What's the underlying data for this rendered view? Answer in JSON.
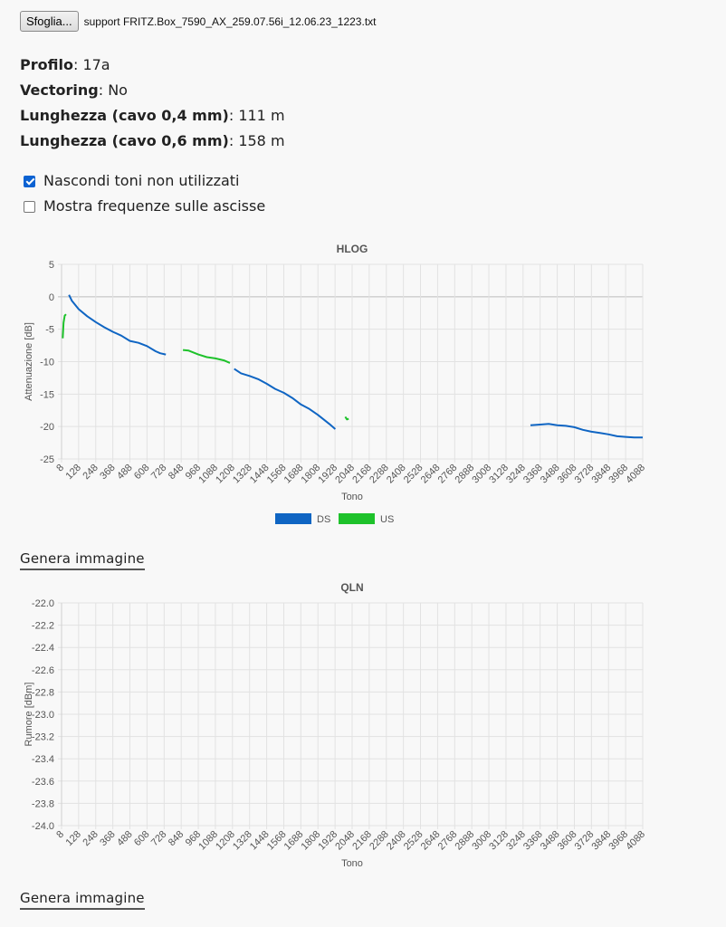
{
  "file": {
    "button_label": "Sfoglia...",
    "file_name": "support FRITZ.Box_7590_AX_259.07.56i_12.06.23_1223.txt"
  },
  "info": [
    {
      "label": "Profilo",
      "value": "17a"
    },
    {
      "label": "Vectoring",
      "value": "No"
    },
    {
      "label": "Lunghezza (cavo 0,4 mm)",
      "value": "111 m"
    },
    {
      "label": "Lunghezza (cavo 0,6 mm)",
      "value": "158 m"
    }
  ],
  "options": [
    {
      "label": "Nascondi toni non utilizzati",
      "checked": true
    },
    {
      "label": "Mostra frequenze sulle ascisse",
      "checked": false
    }
  ],
  "generate_label": "Genera immagine",
  "colors": {
    "ds": "#0f65c3",
    "us": "#1ec22b"
  },
  "chart_data": [
    {
      "type": "line",
      "title": "HLOG",
      "xlabel": "Tono",
      "ylabel": "Attenuazione [dB]",
      "xlim": [
        8,
        4088
      ],
      "ylim": [
        -25,
        5
      ],
      "xticks": [
        "8",
        "128",
        "248",
        "368",
        "488",
        "608",
        "728",
        "848",
        "968",
        "1088",
        "1208",
        "1328",
        "1448",
        "1568",
        "1688",
        "1808",
        "1928",
        "2048",
        "2168",
        "2288",
        "2408",
        "2528",
        "2648",
        "2768",
        "2888",
        "3008",
        "3128",
        "3248",
        "3368",
        "3488",
        "3608",
        "3728",
        "3848",
        "3968",
        "4088"
      ],
      "yticks": [
        "5",
        "0",
        "-5",
        "-10",
        "-15",
        "-20",
        "-25"
      ],
      "grid": true,
      "legend": "bottom-center",
      "series": [
        {
          "name": "DS",
          "segments": [
            [
              [
                60,
                0.3
              ],
              [
                80,
                -0.6
              ],
              [
                128,
                -1.9
              ],
              [
                188,
                -3.0
              ],
              [
                248,
                -3.9
              ],
              [
                308,
                -4.7
              ],
              [
                368,
                -5.4
              ],
              [
                428,
                -6.0
              ],
              [
                488,
                -6.8
              ],
              [
                548,
                -7.1
              ],
              [
                608,
                -7.6
              ],
              [
                668,
                -8.4
              ],
              [
                700,
                -8.7
              ],
              [
                740,
                -8.9
              ]
            ],
            [
              [
                1220,
                -11.1
              ],
              [
                1268,
                -11.8
              ],
              [
                1328,
                -12.2
              ],
              [
                1388,
                -12.7
              ],
              [
                1448,
                -13.4
              ],
              [
                1508,
                -14.2
              ],
              [
                1568,
                -14.8
              ],
              [
                1628,
                -15.6
              ],
              [
                1688,
                -16.6
              ],
              [
                1748,
                -17.3
              ],
              [
                1808,
                -18.2
              ],
              [
                1848,
                -18.9
              ],
              [
                1888,
                -19.6
              ],
              [
                1930,
                -20.4
              ]
            ],
            [
              [
                3300,
                -19.8
              ],
              [
                3368,
                -19.7
              ],
              [
                3428,
                -19.6
              ],
              [
                3488,
                -19.8
              ],
              [
                3548,
                -19.9
              ],
              [
                3608,
                -20.1
              ],
              [
                3668,
                -20.5
              ],
              [
                3728,
                -20.8
              ],
              [
                3788,
                -21.0
              ],
              [
                3848,
                -21.2
              ],
              [
                3908,
                -21.5
              ],
              [
                3968,
                -21.6
              ],
              [
                4028,
                -21.7
              ],
              [
                4088,
                -21.7
              ]
            ]
          ]
        },
        {
          "name": "US",
          "segments": [
            [
              [
                16,
                -6.4
              ],
              [
                22,
                -4.0
              ],
              [
                30,
                -2.9
              ],
              [
                40,
                -2.7
              ]
            ],
            [
              [
                860,
                -8.2
              ],
              [
                900,
                -8.3
              ],
              [
                968,
                -8.9
              ],
              [
                1028,
                -9.3
              ],
              [
                1088,
                -9.5
              ],
              [
                1148,
                -9.8
              ],
              [
                1190,
                -10.2
              ]
            ],
            [
              [
                2000,
                -18.5
              ],
              [
                2012,
                -18.9
              ],
              [
                2024,
                -18.8
              ]
            ]
          ]
        }
      ]
    },
    {
      "type": "line",
      "title": "QLN",
      "xlabel": "Tono",
      "ylabel": "Rumore [dBm]",
      "xlim": [
        8,
        4088
      ],
      "ylim": [
        -24.0,
        -22.0
      ],
      "xticks": [
        "8",
        "128",
        "248",
        "368",
        "488",
        "608",
        "728",
        "848",
        "968",
        "1088",
        "1208",
        "1328",
        "1448",
        "1568",
        "1688",
        "1808",
        "1928",
        "2048",
        "2168",
        "2288",
        "2408",
        "2528",
        "2648",
        "2768",
        "2888",
        "3008",
        "3128",
        "3248",
        "3368",
        "3488",
        "3608",
        "3728",
        "3848",
        "3968",
        "4088"
      ],
      "yticks": [
        "-22.0",
        "-22.2",
        "-22.4",
        "-22.6",
        "-22.8",
        "-23.0",
        "-23.2",
        "-23.4",
        "-23.6",
        "-23.8",
        "-24.0"
      ],
      "grid": true,
      "series": []
    }
  ]
}
